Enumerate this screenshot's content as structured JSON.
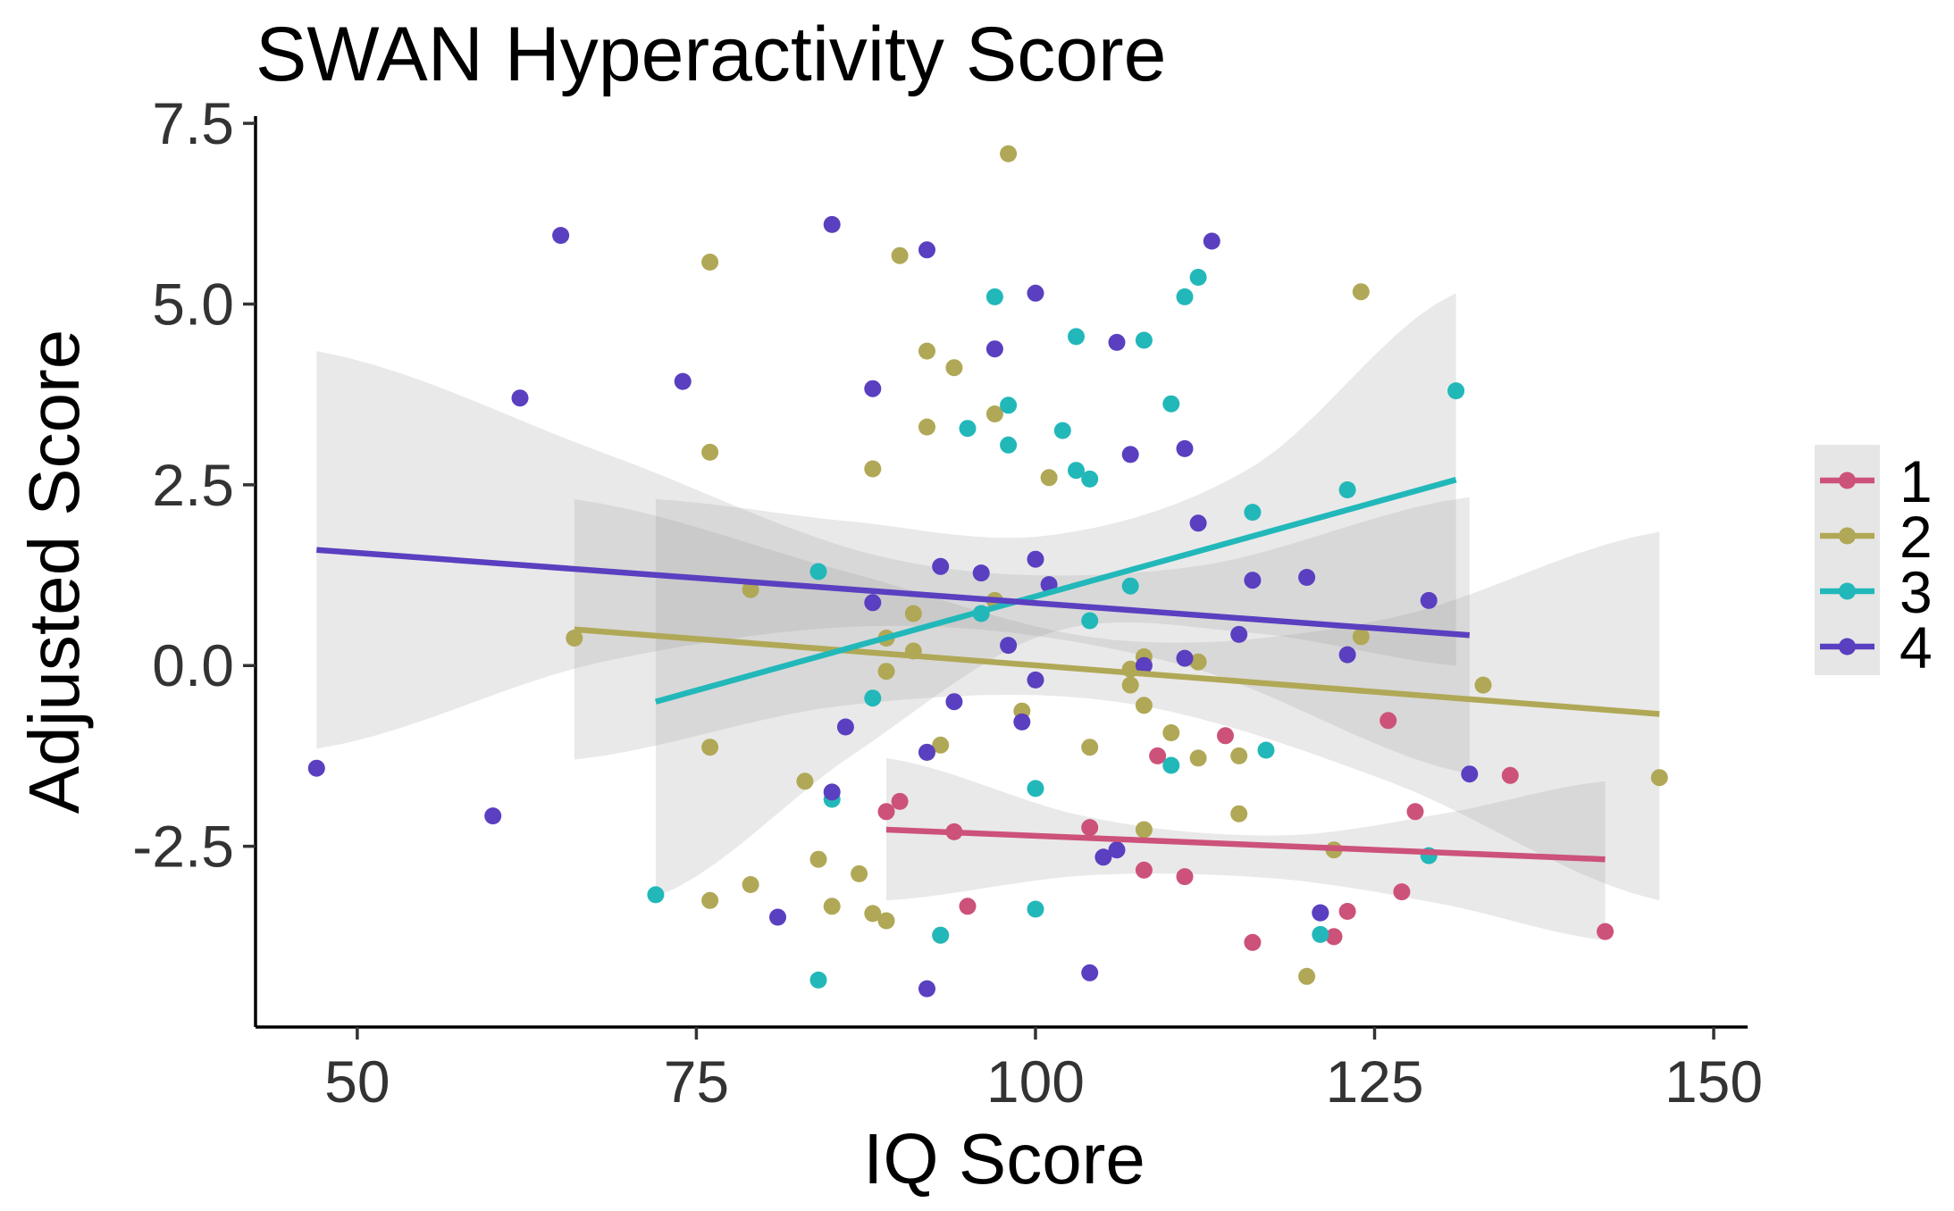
{
  "chart_data": {
    "type": "scatter",
    "title": "SWAN Hyperactivity Score",
    "xlabel": "IQ Score",
    "ylabel": "Adjusted Score",
    "xlim": [
      42.5,
      152.5
    ],
    "ylim": [
      -5.0,
      7.6
    ],
    "xticks": [
      50,
      75,
      100,
      125,
      150
    ],
    "xtick_labels": [
      "50",
      "75",
      "100",
      "125",
      "150"
    ],
    "yticks": [
      -2.5,
      0.0,
      2.5,
      5.0,
      7.5
    ],
    "ytick_labels": [
      "-2.5",
      "0.0",
      "2.5",
      "5.0",
      "7.5"
    ],
    "grid": false,
    "legend_position": "right",
    "series": [
      {
        "name": "1",
        "color": "#cc527a",
        "points": [
          [
            89,
            -2.02
          ],
          [
            90,
            -1.88
          ],
          [
            94,
            -2.3
          ],
          [
            95,
            -3.33
          ],
          [
            104,
            -2.24
          ],
          [
            108,
            -2.83
          ],
          [
            109,
            -1.25
          ],
          [
            111,
            -2.92
          ],
          [
            114,
            -0.97
          ],
          [
            116,
            -3.83
          ],
          [
            122,
            -3.75
          ],
          [
            123,
            -3.4
          ],
          [
            126,
            -0.76
          ],
          [
            127,
            -3.13
          ],
          [
            128,
            -2.02
          ],
          [
            135,
            -1.52
          ],
          [
            142,
            -3.68
          ]
        ],
        "trend": {
          "x": [
            89,
            142
          ],
          "y": [
            -2.27,
            -2.68
          ]
        },
        "band": {
          "x": [
            89,
            104,
            118,
            130,
            142
          ],
          "lower": [
            -3.25,
            -2.9,
            -2.95,
            -3.3,
            -3.8
          ],
          "upper": [
            -1.28,
            -2.1,
            -2.35,
            -2.05,
            -1.6
          ]
        }
      },
      {
        "name": "2",
        "color": "#b0a856",
        "points": [
          [
            66,
            0.38
          ],
          [
            76,
            5.58
          ],
          [
            76,
            2.95
          ],
          [
            76,
            -1.13
          ],
          [
            76,
            -3.25
          ],
          [
            79,
            1.05
          ],
          [
            79,
            -3.03
          ],
          [
            83,
            -1.6
          ],
          [
            84,
            -2.68
          ],
          [
            85,
            -3.33
          ],
          [
            87,
            -2.88
          ],
          [
            88,
            2.72
          ],
          [
            88,
            -3.43
          ],
          [
            89,
            0.38
          ],
          [
            89,
            -0.08
          ],
          [
            89,
            -3.53
          ],
          [
            90,
            5.67
          ],
          [
            91,
            0.72
          ],
          [
            91,
            0.2
          ],
          [
            92,
            4.35
          ],
          [
            92,
            3.3
          ],
          [
            92,
            -1.2
          ],
          [
            93,
            -1.1
          ],
          [
            93,
            -3.73
          ],
          [
            94,
            4.12
          ],
          [
            97,
            3.48
          ],
          [
            97,
            0.9
          ],
          [
            98,
            7.08
          ],
          [
            99,
            -0.63
          ],
          [
            101,
            2.6
          ],
          [
            104,
            -1.13
          ],
          [
            107,
            -0.27
          ],
          [
            107,
            -0.05
          ],
          [
            108,
            0.12
          ],
          [
            108,
            -0.55
          ],
          [
            108,
            -2.27
          ],
          [
            110,
            -0.93
          ],
          [
            112,
            0.05
          ],
          [
            112,
            -1.28
          ],
          [
            115,
            -1.25
          ],
          [
            115,
            -2.05
          ],
          [
            120,
            -4.3
          ],
          [
            122,
            -2.55
          ],
          [
            124,
            5.17
          ],
          [
            124,
            0.4
          ],
          [
            133,
            -0.27
          ],
          [
            146,
            -1.55
          ]
        ],
        "trend": {
          "x": [
            66,
            146
          ],
          "y": [
            0.5,
            -0.67
          ]
        },
        "band": {
          "x": [
            66,
            86,
            106,
            126,
            146
          ],
          "lower": [
            -1.3,
            -0.55,
            -0.5,
            -1.6,
            -3.25
          ],
          "upper": [
            2.3,
            1.3,
            0.35,
            0.65,
            1.85
          ]
        }
      },
      {
        "name": "3",
        "color": "#22b8ba",
        "points": [
          [
            72,
            -3.17
          ],
          [
            84,
            1.3
          ],
          [
            84,
            -4.35
          ],
          [
            85,
            -1.85
          ],
          [
            88,
            -0.45
          ],
          [
            93,
            -3.73
          ],
          [
            95,
            3.28
          ],
          [
            96,
            0.72
          ],
          [
            97,
            5.1
          ],
          [
            98,
            3.6
          ],
          [
            98,
            3.05
          ],
          [
            100,
            -1.7
          ],
          [
            100,
            -3.37
          ],
          [
            102,
            3.25
          ],
          [
            103,
            4.55
          ],
          [
            103,
            2.7
          ],
          [
            104,
            2.58
          ],
          [
            104,
            0.62
          ],
          [
            107,
            1.1
          ],
          [
            108,
            4.5
          ],
          [
            110,
            3.62
          ],
          [
            110,
            -1.38
          ],
          [
            111,
            5.1
          ],
          [
            112,
            5.37
          ],
          [
            116,
            2.12
          ],
          [
            117,
            -1.17
          ],
          [
            121,
            -3.72
          ],
          [
            123,
            2.43
          ],
          [
            129,
            -2.63
          ],
          [
            131,
            3.8
          ]
        ],
        "trend": {
          "x": [
            72,
            131
          ],
          "y": [
            -0.5,
            2.57
          ]
        },
        "band": {
          "x": [
            72,
            86,
            101,
            116,
            131
          ],
          "lower": [
            -3.2,
            -1.3,
            0.45,
            0.45,
            0.0
          ],
          "upper": [
            2.3,
            2.0,
            1.8,
            2.75,
            5.15
          ]
        }
      },
      {
        "name": "4",
        "color": "#5a3fc0",
        "points": [
          [
            47,
            -1.42
          ],
          [
            60,
            -2.08
          ],
          [
            62,
            3.7
          ],
          [
            65,
            5.95
          ],
          [
            74,
            3.93
          ],
          [
            81,
            -3.48
          ],
          [
            85,
            6.1
          ],
          [
            85,
            -1.75
          ],
          [
            86,
            -0.85
          ],
          [
            88,
            3.83
          ],
          [
            88,
            0.87
          ],
          [
            92,
            5.75
          ],
          [
            92,
            -1.2
          ],
          [
            92,
            -4.47
          ],
          [
            93,
            1.37
          ],
          [
            94,
            -0.5
          ],
          [
            96,
            1.28
          ],
          [
            97,
            4.38
          ],
          [
            98,
            0.28
          ],
          [
            99,
            -0.78
          ],
          [
            100,
            5.15
          ],
          [
            100,
            1.47
          ],
          [
            100,
            -0.2
          ],
          [
            101,
            1.12
          ],
          [
            104,
            -4.25
          ],
          [
            105,
            -2.65
          ],
          [
            106,
            4.47
          ],
          [
            106,
            -2.55
          ],
          [
            107,
            2.92
          ],
          [
            108,
            0.0
          ],
          [
            111,
            3.0
          ],
          [
            111,
            0.1
          ],
          [
            112,
            1.97
          ],
          [
            113,
            5.87
          ],
          [
            115,
            0.43
          ],
          [
            116,
            1.18
          ],
          [
            120,
            1.22
          ],
          [
            121,
            -3.42
          ],
          [
            121,
            -3.42
          ],
          [
            123,
            0.15
          ],
          [
            129,
            0.9
          ],
          [
            132,
            -1.5
          ]
        ],
        "trend": {
          "x": [
            47,
            132
          ],
          "y": [
            1.6,
            0.42
          ]
        },
        "band": {
          "x": [
            47,
            68,
            90,
            111,
            132
          ],
          "lower": [
            -1.15,
            0.05,
            0.55,
            0.0,
            -1.5
          ],
          "upper": [
            4.35,
            2.95,
            1.45,
            1.35,
            2.33
          ]
        }
      }
    ]
  }
}
